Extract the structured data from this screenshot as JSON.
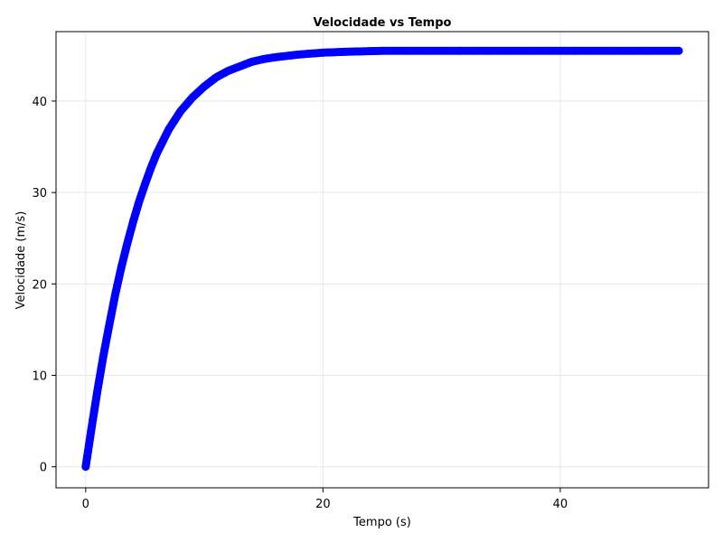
{
  "chart_data": {
    "type": "scatter",
    "title": "Velocidade vs Tempo",
    "xlabel": "Tempo (s)",
    "ylabel": "Velocidade (m/s)",
    "xlim": [
      -2.5,
      52.5
    ],
    "ylim": [
      -2.3,
      47.6
    ],
    "xticks": [
      0,
      20,
      40
    ],
    "yticks": [
      0,
      10,
      20,
      30,
      40
    ],
    "grid": true,
    "marker_color": "#0000ff",
    "series": [
      {
        "values": [
          {
            "x": 0.0,
            "y": 0.0
          },
          {
            "x": 0.5,
            "y": 4.3
          },
          {
            "x": 1.0,
            "y": 8.4
          },
          {
            "x": 1.5,
            "y": 12.2
          },
          {
            "x": 2.0,
            "y": 15.6
          },
          {
            "x": 2.5,
            "y": 18.9
          },
          {
            "x": 3.0,
            "y": 21.8
          },
          {
            "x": 3.5,
            "y": 24.4
          },
          {
            "x": 4.0,
            "y": 26.8
          },
          {
            "x": 4.5,
            "y": 29.0
          },
          {
            "x": 5.0,
            "y": 30.9
          },
          {
            "x": 5.5,
            "y": 32.7
          },
          {
            "x": 6.0,
            "y": 34.3
          },
          {
            "x": 7.0,
            "y": 36.9
          },
          {
            "x": 8.0,
            "y": 38.9
          },
          {
            "x": 9.0,
            "y": 40.4
          },
          {
            "x": 10.0,
            "y": 41.6
          },
          {
            "x": 11.0,
            "y": 42.6
          },
          {
            "x": 12.0,
            "y": 43.3
          },
          {
            "x": 13.0,
            "y": 43.8
          },
          {
            "x": 14.0,
            "y": 44.3
          },
          {
            "x": 15.0,
            "y": 44.6
          },
          {
            "x": 16.0,
            "y": 44.8
          },
          {
            "x": 18.0,
            "y": 45.1
          },
          {
            "x": 20.0,
            "y": 45.3
          },
          {
            "x": 22.0,
            "y": 45.4
          },
          {
            "x": 25.0,
            "y": 45.5
          },
          {
            "x": 30.0,
            "y": 45.5
          },
          {
            "x": 35.0,
            "y": 45.5
          },
          {
            "x": 40.0,
            "y": 45.5
          },
          {
            "x": 45.0,
            "y": 45.5
          },
          {
            "x": 50.0,
            "y": 45.5
          }
        ]
      }
    ]
  }
}
